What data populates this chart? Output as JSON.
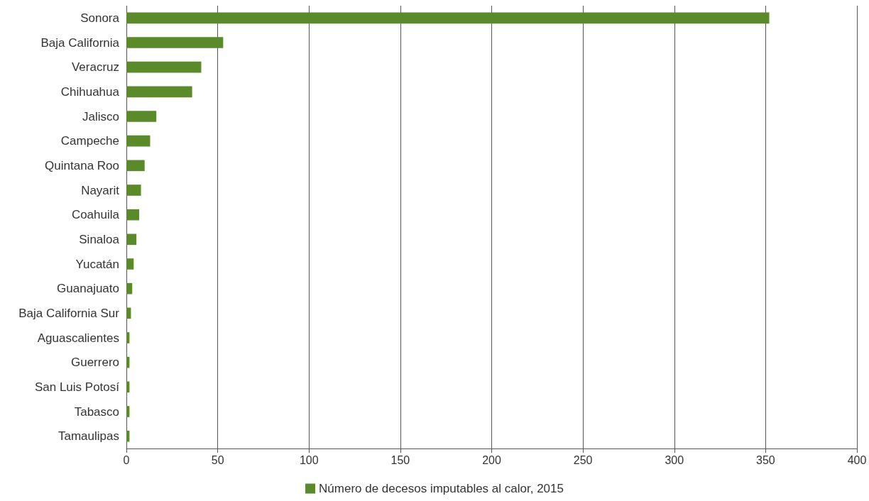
{
  "chart_data": {
    "type": "bar",
    "orientation": "horizontal",
    "categories": [
      "Sonora",
      "Baja California",
      "Veracruz",
      "Chihuahua",
      "Jalisco",
      "Campeche",
      "Quintana Roo",
      "Nayarit",
      "Coahuila",
      "Sinaloa",
      "Yucatán",
      "Guanajuato",
      "Baja California Sur",
      "Aguascalientes",
      "Guerrero",
      "San Luis Potosí",
      "Tabasco",
      "Tamaulipas"
    ],
    "series": [
      {
        "name": "Número de decesos imputables al calor, 2015",
        "color": "#5a8a2a",
        "values": [
          352,
          53,
          41,
          36,
          16.4,
          13,
          10,
          8,
          7,
          5.5,
          4,
          3.2,
          2.5,
          1.7,
          1.7,
          1.7,
          1.7,
          1.7
        ]
      }
    ],
    "xlim": [
      0,
      400
    ],
    "xticks": [
      0,
      50,
      100,
      150,
      200,
      250,
      300,
      350,
      400
    ],
    "grid": "x",
    "legend": "bottom"
  }
}
